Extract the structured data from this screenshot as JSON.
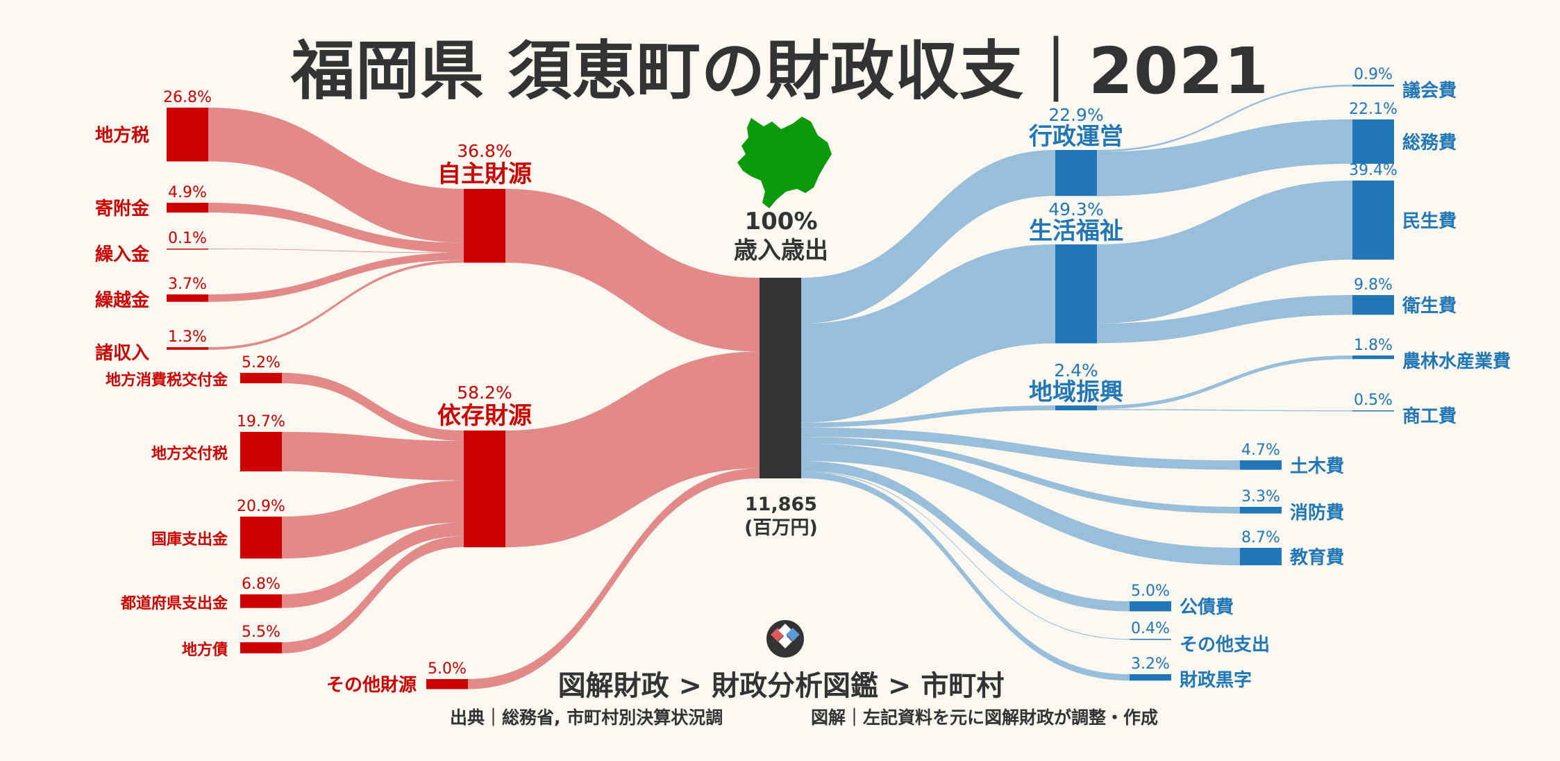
{
  "title": "福岡県 須恵町の財政収支｜2021",
  "center": {
    "label_pct": "100%",
    "label_text": "歳入歳出",
    "amount": "11,865",
    "unit": "(百万円)"
  },
  "footer": {
    "breadcrumb": "図解財政 > 財政分析図鑑 > 市町村",
    "source": "出典｜総務省, 市町村別決算状況調",
    "note": "図解｜左記資料を元に図解財政が調整・作成"
  },
  "colors": {
    "revenue_node": "#cc0000",
    "revenue_flow": "#e08484",
    "expense_node": "#2176b5",
    "expense_flow": "#93bad8",
    "center_node": "#333333",
    "map": "#0a9a0a",
    "background": "#faf8f1"
  },
  "chart_data": {
    "type": "sankey",
    "total": 11865,
    "unit": "百万円",
    "revenue_groups": [
      {
        "name": "自主財源",
        "pct": 36.8,
        "pct_label": "36.8%",
        "items": [
          {
            "name": "地方税",
            "pct": 26.8,
            "pct_label": "26.8%"
          },
          {
            "name": "寄附金",
            "pct": 4.9,
            "pct_label": "4.9%"
          },
          {
            "name": "繰入金",
            "pct": 0.1,
            "pct_label": "0.1%"
          },
          {
            "name": "繰越金",
            "pct": 3.7,
            "pct_label": "3.7%"
          },
          {
            "name": "諸収入",
            "pct": 1.3,
            "pct_label": "1.3%"
          }
        ]
      },
      {
        "name": "依存財源",
        "pct": 58.2,
        "pct_label": "58.2%",
        "items": [
          {
            "name": "地方消費税交付金",
            "pct": 5.2,
            "pct_label": "5.2%"
          },
          {
            "name": "地方交付税",
            "pct": 19.7,
            "pct_label": "19.7%"
          },
          {
            "name": "国庫支出金",
            "pct": 20.9,
            "pct_label": "20.9%"
          },
          {
            "name": "都道府県支出金",
            "pct": 6.8,
            "pct_label": "6.8%"
          },
          {
            "name": "地方債",
            "pct": 5.5,
            "pct_label": "5.5%"
          }
        ]
      }
    ],
    "revenue_direct": [
      {
        "name": "その他財源",
        "pct": 5.0,
        "pct_label": "5.0%"
      }
    ],
    "expense_groups": [
      {
        "name": "行政運営",
        "pct": 22.9,
        "pct_label": "22.9%",
        "items": [
          {
            "name": "議会費",
            "pct": 0.9,
            "pct_label": "0.9%"
          },
          {
            "name": "総務費",
            "pct": 22.1,
            "pct_label": "22.1%"
          }
        ]
      },
      {
        "name": "生活福祉",
        "pct": 49.3,
        "pct_label": "49.3%",
        "items": [
          {
            "name": "民生費",
            "pct": 39.4,
            "pct_label": "39.4%"
          },
          {
            "name": "衛生費",
            "pct": 9.8,
            "pct_label": "9.8%"
          }
        ]
      },
      {
        "name": "地域振興",
        "pct": 2.4,
        "pct_label": "2.4%",
        "items": [
          {
            "name": "農林水産業費",
            "pct": 1.8,
            "pct_label": "1.8%"
          },
          {
            "name": "商工費",
            "pct": 0.5,
            "pct_label": "0.5%"
          }
        ]
      }
    ],
    "expense_direct": [
      {
        "name": "土木費",
        "pct": 4.7,
        "pct_label": "4.7%"
      },
      {
        "name": "消防費",
        "pct": 3.3,
        "pct_label": "3.3%"
      },
      {
        "name": "教育費",
        "pct": 8.7,
        "pct_label": "8.7%"
      },
      {
        "name": "公債費",
        "pct": 5.0,
        "pct_label": "5.0%"
      },
      {
        "name": "その他支出",
        "pct": 0.4,
        "pct_label": "0.4%"
      },
      {
        "name": "財政黒字",
        "pct": 3.2,
        "pct_label": "3.2%"
      }
    ]
  }
}
